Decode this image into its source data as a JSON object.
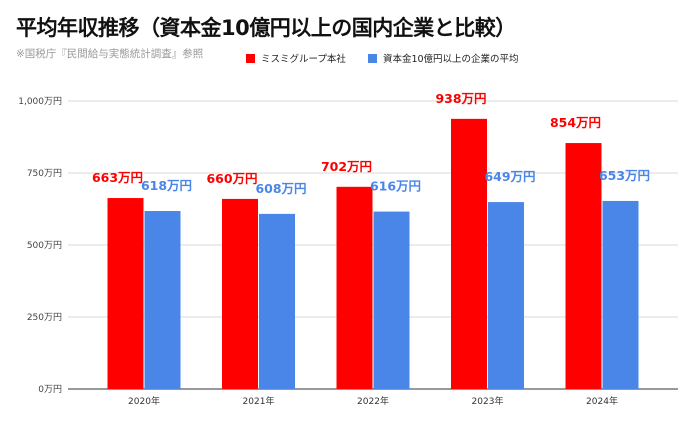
{
  "title": "平均年収推移（資本金10億円以上の国内企業と比較）",
  "source": "※国税庁『民間給与実態統計調査』参照",
  "chart_data": {
    "type": "bar",
    "categories": [
      "2020年",
      "2021年",
      "2022年",
      "2023年",
      "2024年"
    ],
    "series": [
      {
        "name": "ミスミグループ本社",
        "values": [
          663,
          660,
          702,
          938,
          854
        ],
        "labels": [
          "663万円",
          "660万円",
          "702万円",
          "938万円",
          "854万円"
        ],
        "color": "#ff0000"
      },
      {
        "name": "資本金10億円以上の企業の平均",
        "values": [
          618,
          608,
          616,
          649,
          653
        ],
        "labels": [
          "618万円",
          "608万円",
          "616万円",
          "649万円",
          "653万円"
        ],
        "color": "#4a86e8"
      }
    ],
    "ylim": [
      0,
      1000
    ],
    "yticks": [
      0,
      250,
      500,
      750,
      1000
    ],
    "ytick_labels": [
      "0万円",
      "250万円",
      "500万円",
      "750万円",
      "1,000万円"
    ],
    "grid": true,
    "legend": "top"
  }
}
